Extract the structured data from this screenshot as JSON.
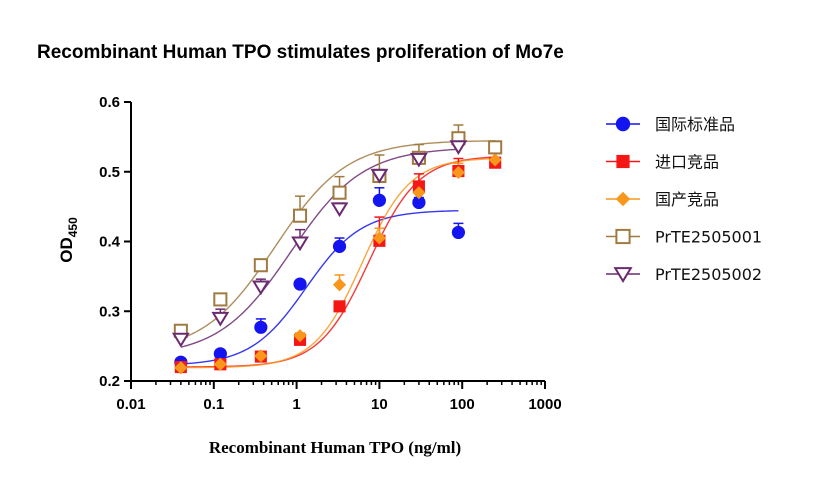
{
  "chart_data": {
    "type": "scatter",
    "title": "Recombinant Human TPO stimulates proliferation of Mo7e",
    "xlabel": "Recombinant Human TPO (ng/ml)",
    "ylabel_main": "OD",
    "ylabel_sub": "450",
    "x_scale": "log",
    "xlim": [
      0.01,
      1000
    ],
    "ylim": [
      0.2,
      0.6
    ],
    "x_ticks": [
      0.01,
      0.1,
      1,
      10,
      100,
      1000
    ],
    "x_tick_labels": [
      "0.01",
      "0.1",
      "1",
      "10",
      "100",
      "1000"
    ],
    "y_ticks": [
      0.2,
      0.3,
      0.4,
      0.5,
      0.6
    ],
    "y_tick_labels": [
      "0.2",
      "0.3",
      "0.4",
      "0.5",
      "0.6"
    ],
    "legend_position": "right",
    "series": [
      {
        "name": "国际标准品",
        "color": "#1414f0",
        "marker": "circle",
        "x": [
          0.04,
          0.12,
          0.37,
          1.1,
          3.3,
          10,
          30,
          90
        ],
        "y": [
          0.227,
          0.239,
          0.277,
          0.339,
          0.393,
          0.459,
          0.456,
          0.413
        ],
        "err": [
          0.004,
          0.004,
          0.012,
          0.005,
          0.012,
          0.018,
          0.007,
          0.013
        ],
        "fit": {
          "bottom": 0.222,
          "top": 0.445,
          "ec50": 1.3,
          "hill": 1.3
        }
      },
      {
        "name": "进口竞品",
        "color": "#f51616",
        "marker": "square",
        "x": [
          0.04,
          0.12,
          0.37,
          1.1,
          3.3,
          10,
          30,
          90,
          250
        ],
        "y": [
          0.22,
          0.224,
          0.235,
          0.259,
          0.307,
          0.401,
          0.479,
          0.501,
          0.513
        ],
        "err": [
          0.003,
          0.003,
          0.004,
          0.004,
          0.006,
          0.034,
          0.018,
          0.018,
          0.013
        ],
        "fit": {
          "bottom": 0.22,
          "top": 0.523,
          "ec50": 7.5,
          "hill": 1.45
        }
      },
      {
        "name": "国产竞品",
        "color": "#f9961c",
        "marker": "diamond",
        "x": [
          0.04,
          0.12,
          0.37,
          1.1,
          3.3,
          10,
          30,
          90,
          250
        ],
        "y": [
          0.219,
          0.224,
          0.236,
          0.265,
          0.338,
          0.405,
          0.47,
          0.499,
          0.517
        ],
        "err": [
          0.003,
          0.003,
          0.004,
          0.004,
          0.014,
          0.014,
          0.014,
          0.013,
          0.012
        ],
        "fit": {
          "bottom": 0.219,
          "top": 0.52,
          "ec50": 6.2,
          "hill": 1.5
        }
      },
      {
        "name": "PrTE2505001",
        "color": "#a07a40",
        "marker": "square-open",
        "x": [
          0.04,
          0.12,
          0.37,
          1.1,
          3.3,
          10,
          30,
          90,
          250
        ],
        "y": [
          0.272,
          0.317,
          0.366,
          0.437,
          0.47,
          0.494,
          0.52,
          0.548,
          0.535
        ],
        "err": [
          0.004,
          0.006,
          0.006,
          0.028,
          0.023,
          0.03,
          0.019,
          0.019,
          0.006
        ],
        "fit": {
          "bottom": 0.24,
          "top": 0.545,
          "ec50": 0.55,
          "hill": 1.0
        }
      },
      {
        "name": "PrTE2505002",
        "color": "#6b2a70",
        "marker": "triangle-down-open",
        "x": [
          0.04,
          0.12,
          0.37,
          1.1,
          3.3,
          10,
          30,
          90
        ],
        "y": [
          0.26,
          0.29,
          0.335,
          0.398,
          0.447,
          0.495,
          0.518,
          0.536
        ],
        "err": [
          0.004,
          0.013,
          0.011,
          0.019,
          0.008,
          0.008,
          0.009,
          0.006
        ],
        "fit": {
          "bottom": 0.235,
          "top": 0.535,
          "ec50": 0.85,
          "hill": 1.0
        }
      }
    ]
  }
}
